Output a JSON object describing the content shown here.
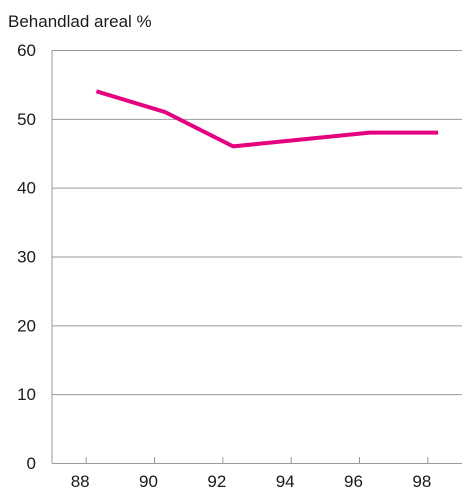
{
  "chart_data": {
    "type": "line",
    "title": "",
    "ylabel": "Behandlad areal %",
    "xlabel": "",
    "x": [
      88,
      90,
      92,
      94,
      96,
      98
    ],
    "x_ticks": [
      "88",
      "90",
      "92",
      "94",
      "96",
      "98"
    ],
    "ylim": [
      0,
      60
    ],
    "y_ticks": [
      "0",
      "10",
      "20",
      "30",
      "40",
      "50",
      "60"
    ],
    "grid": "horizontal",
    "series": [
      {
        "color": "#e5007e",
        "points": [
          {
            "x": 88.3,
            "y": 54
          },
          {
            "x": 90.3,
            "y": 51
          },
          {
            "x": 92.3,
            "y": 46
          },
          {
            "x": 94.3,
            "y": 47
          },
          {
            "x": 96.3,
            "y": 48
          },
          {
            "x": 98.3,
            "y": 48
          }
        ]
      }
    ]
  }
}
